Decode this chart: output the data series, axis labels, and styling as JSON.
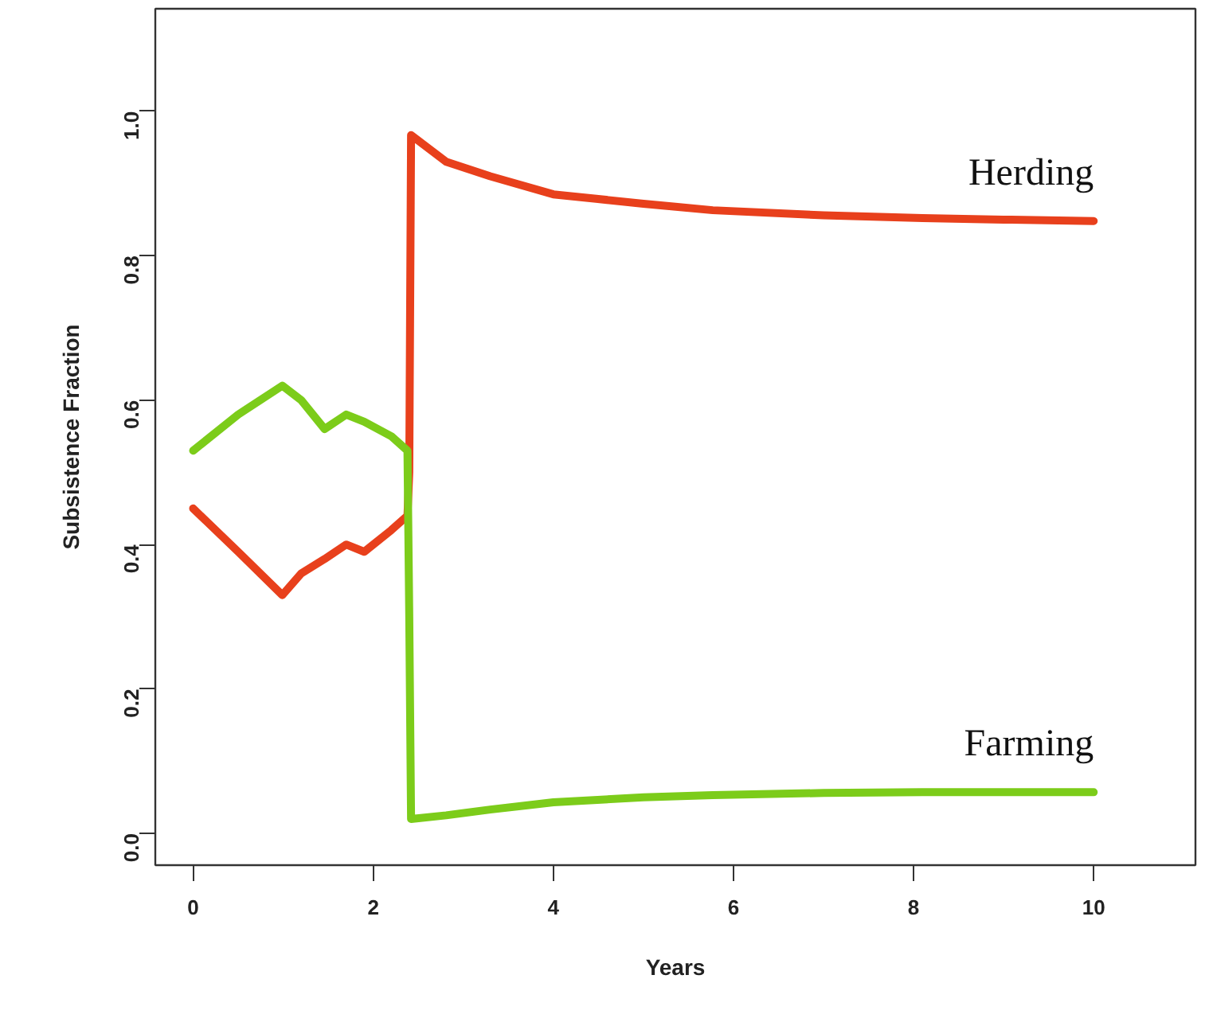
{
  "chart_data": {
    "type": "line",
    "xlabel": "Years",
    "ylabel": "Subsistence Fraction",
    "xlim": [
      -0.42,
      11.13
    ],
    "ylim": [
      -0.044,
      1.142
    ],
    "xticks": [
      0,
      2,
      4,
      6,
      8,
      10
    ],
    "yticks": [
      {
        "value": 0,
        "label": "0.0"
      },
      {
        "value": 0.2,
        "label": "0.2"
      },
      {
        "value": 0.4,
        "label": "0.4"
      },
      {
        "value": 0.6,
        "label": "0.6"
      },
      {
        "value": 0.8,
        "label": "0.8"
      },
      {
        "value": 1,
        "label": "1.0"
      }
    ],
    "grid": false,
    "marker": "none",
    "line_style": "solid",
    "series": [
      {
        "name": "Herding",
        "color": "#e8401c",
        "x": [
          0,
          0.5,
          0.99,
          1.2,
          1.46,
          1.7,
          1.9,
          2.2,
          2.38,
          2.4,
          2.42,
          2.81,
          3.3,
          4.0,
          5.0,
          5.77,
          7.0,
          8.1,
          9.0,
          10
        ],
        "values": [
          0.45,
          0.39,
          0.33,
          0.36,
          0.38,
          0.4,
          0.39,
          0.42,
          0.44,
          0.5,
          0.967,
          0.93,
          0.91,
          0.885,
          0.872,
          0.863,
          0.856,
          0.852,
          0.85,
          0.848
        ]
      },
      {
        "name": "Farming",
        "color": "#7ccc1a",
        "x": [
          0,
          0.5,
          0.99,
          1.2,
          1.46,
          1.7,
          1.9,
          2.2,
          2.38,
          2.4,
          2.42,
          2.81,
          3.3,
          4.0,
          5.0,
          5.77,
          7.0,
          8.1,
          9.0,
          10
        ],
        "values": [
          0.53,
          0.58,
          0.62,
          0.6,
          0.56,
          0.58,
          0.57,
          0.55,
          0.53,
          0.3,
          0.02,
          0.025,
          0.033,
          0.043,
          0.05,
          0.053,
          0.056,
          0.057,
          0.057,
          0.057
        ]
      }
    ]
  }
}
